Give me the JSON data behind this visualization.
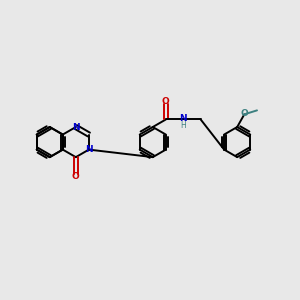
{
  "bg": "#e8e8e8",
  "bc": "#000000",
  "nc": "#0000cc",
  "oc": "#cc0000",
  "teal": "#3d8080",
  "figsize": [
    3.0,
    3.0
  ],
  "dpi": 100,
  "lw": 1.4,
  "r": 0.38,
  "xlim": [
    0,
    7.5
  ],
  "ylim": [
    0,
    7.5
  ]
}
